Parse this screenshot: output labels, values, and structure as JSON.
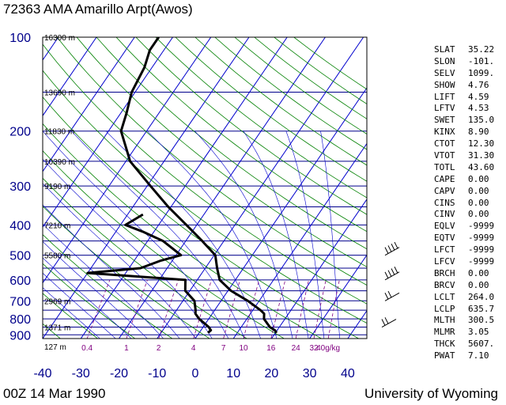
{
  "header": {
    "title": "72363 AMA Amarillo Arpt(Awos)"
  },
  "footer": {
    "left": "00Z 14 Mar 1990",
    "right": "University of Wyoming"
  },
  "colors": {
    "pressure_lines": "#00008b",
    "isotherms": "#0000cd",
    "dry_adiabats": "#008000",
    "moist_adiabats": "#0000cd",
    "mixing_ratio": "#800080",
    "axis_labels": "#00008b",
    "profile": "#000000"
  },
  "stats": [
    {
      "name": "SLAT",
      "value": "35.22"
    },
    {
      "name": "SLON",
      "value": "-101."
    },
    {
      "name": "SELV",
      "value": "1099."
    },
    {
      "name": "SHOW",
      "value": "4.76"
    },
    {
      "name": "LIFT",
      "value": "4.59"
    },
    {
      "name": "LFTV",
      "value": "4.53"
    },
    {
      "name": "SWET",
      "value": "135.0"
    },
    {
      "name": "KINX",
      "value": "8.90"
    },
    {
      "name": "CTOT",
      "value": "12.30"
    },
    {
      "name": "VTOT",
      "value": "31.30"
    },
    {
      "name": "TOTL",
      "value": "43.60"
    },
    {
      "name": "CAPE",
      "value": "0.00"
    },
    {
      "name": "CAPV",
      "value": "0.00"
    },
    {
      "name": "CINS",
      "value": "0.00"
    },
    {
      "name": "CINV",
      "value": "0.00"
    },
    {
      "name": "EQLV",
      "value": "-9999"
    },
    {
      "name": "EQTV",
      "value": "-9999"
    },
    {
      "name": "LFCT",
      "value": "-9999"
    },
    {
      "name": "LFCV",
      "value": "-9999"
    },
    {
      "name": "BRCH",
      "value": "0.00"
    },
    {
      "name": "BRCV",
      "value": "0.00"
    },
    {
      "name": "LCLT",
      "value": "264.0"
    },
    {
      "name": "LCLP",
      "value": "635.7"
    },
    {
      "name": "MLTH",
      "value": "300.5"
    },
    {
      "name": "MLMR",
      "value": "3.05"
    },
    {
      "name": "THCK",
      "value": "5607."
    },
    {
      "name": "PWAT",
      "value": "7.10"
    }
  ],
  "chart_data": {
    "type": "line",
    "title": "72363 AMA Amarillo Arpt(Awos)",
    "xlabel": "",
    "ylabel": "",
    "skew_per_pressure_decade": 56,
    "xlim": [
      -40,
      45
    ],
    "ylim": [
      925,
      100
    ],
    "log_y": true,
    "x_ticks": [
      -40,
      -30,
      -20,
      -10,
      0,
      10,
      20,
      30,
      40
    ],
    "pressure_ticks": [
      100,
      200,
      300,
      400,
      500,
      600,
      700,
      800,
      900
    ],
    "pressure_lines": [
      100,
      150,
      200,
      250,
      300,
      350,
      400,
      450,
      500,
      550,
      600,
      650,
      700,
      750,
      800,
      850,
      900,
      925
    ],
    "height_labels": [
      {
        "p": 100,
        "text": "16300 m"
      },
      {
        "p": 150,
        "text": "13690 m"
      },
      {
        "p": 200,
        "text": "11830 m"
      },
      {
        "p": 250,
        "text": "10390 m"
      },
      {
        "p": 300,
        "text": "9190 m"
      },
      {
        "p": 400,
        "text": "7210 m"
      },
      {
        "p": 500,
        "text": "5580 m"
      },
      {
        "p": 700,
        "text": "2969 m"
      },
      {
        "p": 850,
        "text": "1371 m"
      },
      {
        "p": 1000,
        "text": "127 m"
      }
    ],
    "mixing_ratio_labels": [
      "0.4",
      "1",
      "2",
      "4",
      "7",
      "10",
      "16",
      "24",
      "32",
      "40g/kg"
    ],
    "series": [
      {
        "role": "temperature",
        "points": [
          [
            887,
            20.3
          ],
          [
            870,
            19.4
          ],
          [
            850,
            17.5
          ],
          [
            800,
            14.5
          ],
          [
            770,
            13.6
          ],
          [
            750,
            12.0
          ],
          [
            700,
            7.0
          ],
          [
            650,
            0.8
          ],
          [
            600,
            -4.1
          ],
          [
            550,
            -6.9
          ],
          [
            500,
            -9.7
          ],
          [
            450,
            -15.7
          ],
          [
            400,
            -22.7
          ],
          [
            350,
            -30.7
          ],
          [
            300,
            -39.1
          ],
          [
            250,
            -48.9
          ],
          [
            200,
            -56.7
          ],
          [
            175,
            -58.5
          ],
          [
            150,
            -60.9
          ],
          [
            125,
            -62.0
          ],
          [
            110,
            -63.7
          ],
          [
            100,
            -63.7
          ]
        ]
      },
      {
        "role": "dewpoint",
        "points": [
          [
            887,
            2.3
          ],
          [
            870,
            2.6
          ],
          [
            850,
            1.5
          ],
          [
            800,
            -2.5
          ],
          [
            770,
            -4.4
          ],
          [
            750,
            -5.0
          ],
          [
            700,
            -7.0
          ],
          [
            650,
            -11.2
          ],
          [
            600,
            -13.1
          ],
          [
            570,
            -40.0
          ],
          [
            550,
            -27.0
          ],
          [
            520,
            -23.0
          ],
          [
            500,
            -18.7
          ],
          [
            450,
            -26.0
          ],
          [
            420,
            -33.0
          ],
          [
            400,
            -38.7
          ],
          [
            370,
            -36.0
          ]
        ]
      }
    ],
    "wind_barbs": [
      {
        "p": 500,
        "flags": "4 barbs"
      },
      {
        "p": 600,
        "flags": "4 barbs"
      },
      {
        "p": 700,
        "flags": "2 barbs"
      },
      {
        "p": 850,
        "flags": "2 barbs"
      }
    ]
  }
}
